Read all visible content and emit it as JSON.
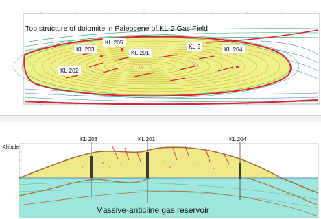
{
  "map": {
    "title": "Top structure of dolomite in Paleocene of KL-2 Gas Field",
    "wells": [
      {
        "id": "kl-203",
        "label": "KL 203"
      },
      {
        "id": "kl-205",
        "label": "KL 205"
      },
      {
        "id": "kl-201",
        "label": "KL 201"
      },
      {
        "id": "kl-2",
        "label": "KL 2"
      },
      {
        "id": "kl-204",
        "label": "KL 204"
      },
      {
        "id": "kl-202",
        "label": "KL 202"
      }
    ]
  },
  "section": {
    "axis_label": "Altitude",
    "wells": [
      {
        "id": "kl-203",
        "label": "KL  203"
      },
      {
        "id": "kl-201",
        "label": "KL 201"
      },
      {
        "id": "kl-204",
        "label": "KL  204"
      }
    ],
    "caption": "Massive-anticline gas reservoir"
  },
  "colors": {
    "gas_zone": "#efe98a",
    "water_zone": "#9fe6dc",
    "fault": "#d8243a",
    "contour_outer": "#2f9a5a",
    "contour_inner": "#d6b82a",
    "well": "#111111"
  }
}
